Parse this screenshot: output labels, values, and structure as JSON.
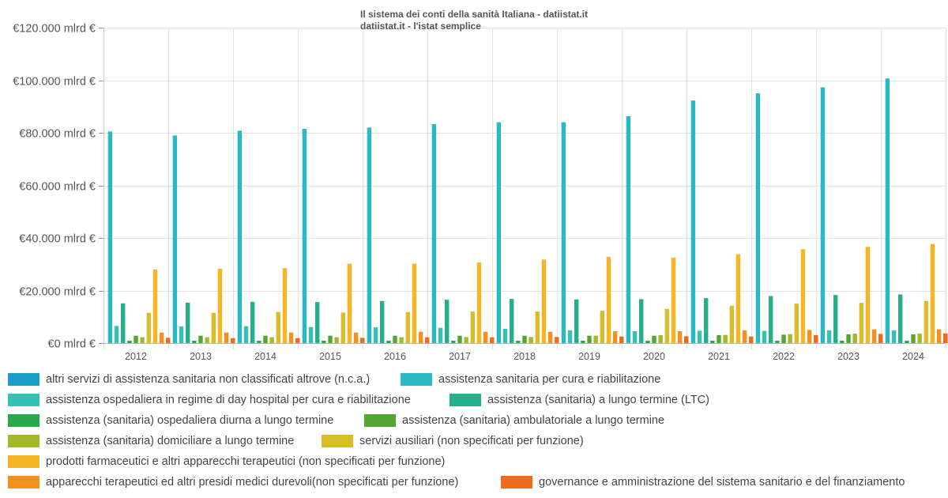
{
  "title_line1": "Il sistema dei conti della sanità Italiana - datiistat.it",
  "title_line2": "datiistat.it - l'istat semplice",
  "chart_data": {
    "type": "bar",
    "title": "Il sistema dei conti della sanità Italiana - datiistat.it",
    "subtitle": "datiistat.it - l'istat semplice",
    "xlabel": "",
    "ylabel": "",
    "ylim": [
      0,
      120000
    ],
    "yticks": [
      0,
      20000,
      40000,
      60000,
      80000,
      100000,
      120000
    ],
    "ytick_labels": [
      "€0 mlrd €",
      "€20.000 mlrd €",
      "€40.000 mlrd €",
      "€60.000 mlrd €",
      "€80.000 mlrd €",
      "€100.000 mlrd €",
      "€120.000 mlrd €"
    ],
    "grid": true,
    "legend_position": "bottom",
    "categories": [
      "2012",
      "2013",
      "2014",
      "2015",
      "2016",
      "2017",
      "2018",
      "2019",
      "2020",
      "2021",
      "2022",
      "2023",
      "2024"
    ],
    "series": [
      {
        "name": "altri servizi di assistenza sanitaria non classificati altrove (n.c.a.)",
        "color": "#1a9cc9",
        "values": [
          0,
          0,
          0,
          0,
          0,
          0,
          0,
          0,
          0,
          0,
          0,
          0,
          0
        ]
      },
      {
        "name": "assistenza sanitaria per cura e riabilitazione",
        "color": "#2ab8c4",
        "values": [
          80500,
          79000,
          80800,
          81500,
          82000,
          83300,
          84000,
          84000,
          86300,
          92300,
          95000,
          97300,
          100700
        ]
      },
      {
        "name": "assistenza ospedaliera in regime di day hospital per cura e riabilitazione",
        "color": "#34c1b1",
        "values": [
          6500,
          6300,
          6400,
          6100,
          6000,
          5800,
          5400,
          4800,
          4500,
          4700,
          4600,
          4800,
          4800
        ]
      },
      {
        "name": "assistenza (sanitaria)  a lungo termine (LTC)",
        "color": "#24b08a",
        "values": [
          15100,
          15400,
          15700,
          15600,
          16000,
          16500,
          16800,
          16600,
          16700,
          17100,
          17900,
          18300,
          18500
        ]
      },
      {
        "name": "assistenza (sanitaria) ospedaliera diurna a lungo termine",
        "color": "#2aa84c",
        "values": [
          900,
          900,
          900,
          900,
          900,
          900,
          900,
          900,
          900,
          900,
          900,
          900,
          900
        ]
      },
      {
        "name": "assistenza (sanitaria) ambulatoriale a lungo termine",
        "color": "#55a534",
        "values": [
          2800,
          2800,
          2800,
          2800,
          2800,
          2800,
          2800,
          2800,
          2800,
          3000,
          3200,
          3300,
          3300
        ]
      },
      {
        "name": "assistenza (sanitaria) domiciliare a lungo termine",
        "color": "#a4b82c",
        "values": [
          2200,
          2200,
          2200,
          2200,
          2200,
          2300,
          2300,
          2800,
          3000,
          3100,
          3400,
          3600,
          3600
        ]
      },
      {
        "name": "servizi ausiliari (non specificati per funzione)",
        "color": "#d9bd28",
        "values": [
          11500,
          11500,
          11800,
          11600,
          11800,
          12000,
          12000,
          12300,
          13000,
          14200,
          15000,
          15300,
          16000
        ]
      },
      {
        "name": "prodotti farmaceutici e altri apparecchi terapeutici (non specificati per funzione)",
        "color": "#f5b525",
        "values": [
          28000,
          28300,
          28500,
          30200,
          30200,
          30700,
          31800,
          32800,
          32500,
          33800,
          35700,
          36600,
          37700
        ]
      },
      {
        "name": "apparecchi terapeutici ed altri presidi medici durevoli(non specificati per funzione)",
        "color": "#f4911e",
        "values": [
          4000,
          4000,
          4000,
          4000,
          4300,
          4300,
          4300,
          4500,
          4500,
          4800,
          5000,
          5200,
          5200
        ]
      },
      {
        "name": "governance e amministrazione del sistema sanitario e del finanziamento",
        "color": "#ef6a1b",
        "values": [
          2000,
          1900,
          1900,
          2000,
          2200,
          2200,
          2300,
          2500,
          2600,
          2500,
          3000,
          3500,
          3700
        ]
      }
    ]
  }
}
